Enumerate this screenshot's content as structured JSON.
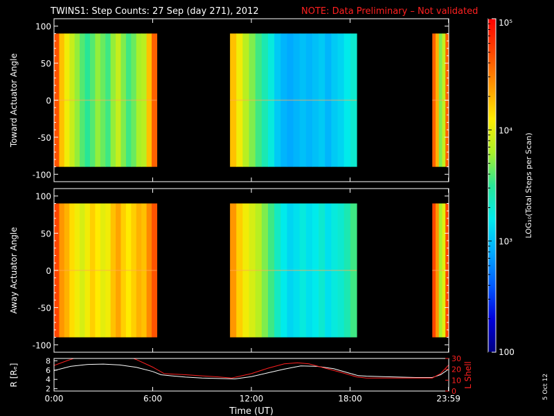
{
  "header": {
    "title": "TWINS1: Step Counts: 27 Sep (day 271), 2012",
    "note": "NOTE: Data Preliminary – Not validated",
    "note_color": "#ff2020"
  },
  "footer": {
    "stamp": "5 Oct 12"
  },
  "chart_data": [
    {
      "type": "heatmap",
      "panel": "top",
      "ylabel": "Toward Actuator Angle",
      "ylim": [
        -110,
        110
      ],
      "yticks": [
        -100,
        -50,
        0,
        50,
        100
      ],
      "xlim_hours": [
        0,
        24
      ],
      "data_angle_range": [
        -90,
        90
      ],
      "segments": [
        {
          "start_hour": 0.0,
          "end_hour": 6.25,
          "log10_profile": [
            4.65,
            4.25,
            4.05,
            3.9,
            3.75,
            3.6,
            3.5,
            3.6,
            3.75,
            3.65,
            3.55,
            3.75,
            3.9,
            3.7,
            3.55,
            3.65,
            3.8,
            3.85,
            4.25,
            4.6
          ]
        },
        {
          "start_hour": 10.7,
          "end_hour": 18.4,
          "log10_profile": [
            4.25,
            4.05,
            3.85,
            3.7,
            3.55,
            3.4,
            3.25,
            3.05,
            2.95,
            2.9,
            2.95,
            3.0,
            2.95,
            3.0,
            3.05,
            2.95,
            3.05,
            3.1,
            3.2,
            3.3
          ]
        },
        {
          "start_hour": 23.0,
          "end_hour": 24.0,
          "log10_profile": [
            4.6,
            4.3,
            3.7,
            3.9,
            4.6
          ]
        }
      ]
    },
    {
      "type": "heatmap",
      "panel": "middle",
      "ylabel": "Away Actuator Angle",
      "ylim": [
        -110,
        110
      ],
      "yticks": [
        -100,
        -50,
        0,
        50,
        100
      ],
      "xlim_hours": [
        0,
        24
      ],
      "data_angle_range": [
        -90,
        90
      ],
      "segments": [
        {
          "start_hour": 0.0,
          "end_hour": 6.25,
          "log10_profile": [
            4.7,
            4.4,
            4.3,
            4.15,
            4.05,
            3.95,
            4.05,
            4.2,
            4.1,
            4.0,
            4.05,
            4.25,
            4.35,
            4.2,
            4.1,
            4.2,
            4.3,
            4.25,
            4.45,
            4.65
          ]
        },
        {
          "start_hour": 10.7,
          "end_hour": 18.4,
          "log10_profile": [
            4.4,
            4.2,
            4.05,
            3.95,
            3.85,
            3.7,
            3.55,
            3.35,
            3.2,
            3.1,
            3.15,
            3.25,
            3.15,
            3.2,
            3.3,
            3.15,
            3.25,
            3.3,
            3.4,
            3.55
          ]
        },
        {
          "start_hour": 23.0,
          "end_hour": 24.0,
          "log10_profile": [
            4.7,
            4.4,
            3.8,
            4.0,
            4.7
          ]
        }
      ]
    },
    {
      "type": "line",
      "panel": "bottom",
      "ylabel": "R [Rₑ]",
      "y2label": "L Shell",
      "xlabel": "Time (UT)",
      "xticks": [
        {
          "hour": 0,
          "label": "0:00"
        },
        {
          "hour": 6,
          "label": "6:00"
        },
        {
          "hour": 12,
          "label": "12:00"
        },
        {
          "hour": 18,
          "label": "18:00"
        },
        {
          "hour": 23.983,
          "label": "23:59"
        }
      ],
      "ylim": [
        1.5,
        8.5
      ],
      "yticks": [
        2,
        4,
        6,
        8
      ],
      "y2lim": [
        0,
        30
      ],
      "y2ticks": [
        0,
        10,
        20,
        30
      ],
      "series": [
        {
          "color": "#ffffff",
          "axis": "left",
          "x": [
            0,
            1,
            2,
            3,
            4,
            5,
            6,
            6.5,
            7,
            8,
            9,
            10,
            11,
            12,
            13,
            14,
            15,
            16,
            17,
            18,
            18.5,
            19,
            20,
            21,
            22,
            23,
            23.5,
            24
          ],
          "y": [
            5.9,
            6.8,
            7.2,
            7.3,
            7.1,
            6.6,
            5.7,
            5.0,
            4.8,
            4.5,
            4.3,
            4.2,
            4.1,
            4.6,
            5.4,
            6.2,
            6.9,
            6.8,
            6.3,
            5.3,
            4.8,
            4.7,
            4.6,
            4.5,
            4.4,
            4.4,
            5.0,
            6.2
          ]
        },
        {
          "color": "#ff2020",
          "axis": "right",
          "x": [
            0,
            0.8,
            1.6,
            4.5,
            5.0,
            6.0,
            6.7,
            8,
            9,
            10,
            10.8,
            12,
            13,
            14,
            14.8,
            15.5,
            16.5,
            17.5,
            18.4,
            19,
            20,
            21,
            22,
            23,
            23.5,
            24
          ],
          "y": [
            23.5,
            28,
            32,
            32,
            29,
            22,
            16,
            15,
            14,
            13,
            12,
            16,
            21,
            25,
            26,
            25,
            21,
            17,
            13,
            12,
            12,
            12,
            12,
            12,
            16,
            24
          ]
        }
      ]
    },
    {
      "type": "heatmap",
      "panel": "colorbar",
      "ylabel": "LOG₁₀(Total Steps per Scan)",
      "scale": "log",
      "zlim": [
        100,
        100000
      ],
      "tick_labels": [
        {
          "value": 100,
          "label": "100"
        },
        {
          "value": 1000,
          "label": "10³"
        },
        {
          "value": 10000,
          "label": "10⁴"
        },
        {
          "value": 100000,
          "label": "10⁵"
        }
      ]
    }
  ]
}
